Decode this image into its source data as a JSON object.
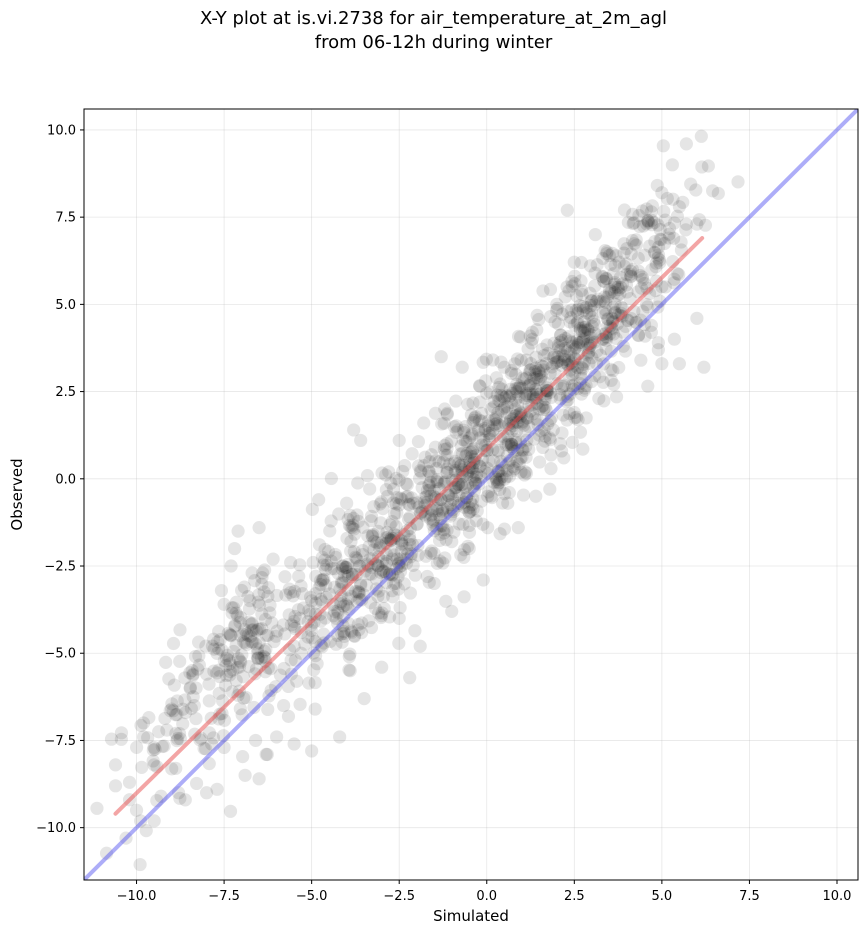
{
  "chart_data": {
    "type": "scatter",
    "title_line1": "X-Y plot at is.vi.2738 for air_temperature_at_2m_agl",
    "title_line2": "from 06-12h during winter",
    "xlabel": "Simulated",
    "ylabel": "Observed",
    "xlim": [
      -11.5,
      10.6
    ],
    "ylim": [
      -11.5,
      10.6
    ],
    "xticks": [
      -10.0,
      -7.5,
      -5.0,
      -2.5,
      0.0,
      2.5,
      5.0,
      7.5,
      10.0
    ],
    "xtick_labels": [
      "−10.0",
      "−7.5",
      "−5.0",
      "−2.5",
      "0.0",
      "2.5",
      "5.0",
      "7.5",
      "10.0"
    ],
    "yticks": [
      -10.0,
      -7.5,
      -5.0,
      -2.5,
      0.0,
      2.5,
      5.0,
      7.5,
      10.0
    ],
    "ytick_labels": [
      "−10.0",
      "−7.5",
      "−5.0",
      "−2.5",
      "0.0",
      "2.5",
      "5.0",
      "7.5",
      "10.0"
    ],
    "grid": true,
    "series": [
      {
        "name": "observations",
        "marker_color": "#000000",
        "marker_alpha": 0.1,
        "cloud_description": "dense cloud of roughly 1500 points scattered around the fit line",
        "points": [
          [
            -10.6,
            -8.2
          ],
          [
            -10.6,
            -8.8
          ],
          [
            -10.2,
            -8.7
          ],
          [
            -10.2,
            -9.2
          ],
          [
            -10.3,
            -10.3
          ],
          [
            -10.0,
            -9.5
          ],
          [
            -9.8,
            -7.0
          ],
          [
            -9.8,
            -7.4
          ],
          [
            -9.5,
            -8.2
          ],
          [
            -9.5,
            -7.7
          ],
          [
            -9.3,
            -9.1
          ],
          [
            -9.0,
            -6.6
          ],
          [
            -8.8,
            -9.0
          ],
          [
            -8.6,
            -6.7
          ],
          [
            -8.3,
            -6.0
          ],
          [
            -8.0,
            -9.0
          ],
          [
            -7.7,
            -8.9
          ],
          [
            -7.5,
            -7.7
          ],
          [
            -8.0,
            -5.6
          ],
          [
            -7.8,
            -4.6
          ],
          [
            -7.5,
            -3.6
          ],
          [
            -7.3,
            -2.5
          ],
          [
            -7.2,
            -2.0
          ],
          [
            -7.1,
            -1.5
          ],
          [
            -7.0,
            -3.2
          ],
          [
            -6.7,
            -2.7
          ],
          [
            -6.9,
            -8.5
          ],
          [
            -6.5,
            -8.6
          ],
          [
            -6.6,
            -7.5
          ],
          [
            -6.3,
            -7.9
          ],
          [
            -6.5,
            -4.7
          ],
          [
            -6.5,
            -1.4
          ],
          [
            -6.4,
            -2.7
          ],
          [
            -6.1,
            -2.3
          ],
          [
            -6.0,
            -7.4
          ],
          [
            -5.8,
            -6.5
          ],
          [
            -5.6,
            -2.4
          ],
          [
            -5.5,
            -4.8
          ],
          [
            -5.5,
            -7.6
          ],
          [
            -5.3,
            -5.0
          ],
          [
            -5.0,
            -3.5
          ],
          [
            -4.9,
            -6.6
          ],
          [
            -5.0,
            -7.8
          ],
          [
            -4.8,
            -0.6
          ],
          [
            -4.6,
            -2.6
          ],
          [
            -4.3,
            -4.0
          ],
          [
            -4.2,
            -7.4
          ],
          [
            -4.1,
            -2.5
          ],
          [
            -4.0,
            -0.7
          ],
          [
            -3.9,
            -5.5
          ],
          [
            -3.8,
            1.4
          ],
          [
            -3.6,
            1.1
          ],
          [
            -3.6,
            -3.0
          ],
          [
            -3.5,
            -6.3
          ],
          [
            -3.3,
            -1.2
          ],
          [
            -3.1,
            -2.5
          ],
          [
            -3.0,
            -5.4
          ],
          [
            -2.8,
            0.2
          ],
          [
            -2.6,
            -3.0
          ],
          [
            -2.5,
            1.1
          ],
          [
            -2.5,
            -4.0
          ],
          [
            -2.3,
            -2.3
          ],
          [
            -2.2,
            -5.7
          ],
          [
            -2.1,
            -0.7
          ],
          [
            -2.0,
            -1.3
          ],
          [
            -1.9,
            -4.8
          ],
          [
            -1.8,
            1.6
          ],
          [
            -1.7,
            -2.8
          ],
          [
            -1.6,
            -0.1
          ],
          [
            -1.5,
            -3.0
          ],
          [
            -1.4,
            -0.6
          ],
          [
            -1.3,
            3.5
          ],
          [
            -1.2,
            2.0
          ],
          [
            -1.0,
            -1.8
          ],
          [
            -1.0,
            -3.8
          ],
          [
            -0.9,
            0.5
          ],
          [
            -0.8,
            -0.7
          ],
          [
            -0.7,
            3.2
          ],
          [
            -0.6,
            1.5
          ],
          [
            -0.5,
            -2.0
          ],
          [
            -0.4,
            0.2
          ],
          [
            -0.3,
            -1.2
          ],
          [
            -0.2,
            2.2
          ],
          [
            -0.1,
            -2.9
          ],
          [
            0.0,
            0.8
          ],
          [
            0.1,
            1.3
          ],
          [
            0.2,
            -0.1
          ],
          [
            0.3,
            2.4
          ],
          [
            0.4,
            0.5
          ],
          [
            0.5,
            3.2
          ],
          [
            0.6,
            -0.7
          ],
          [
            0.7,
            1.0
          ],
          [
            0.8,
            1.8
          ],
          [
            0.9,
            -1.4
          ],
          [
            1.0,
            2.6
          ],
          [
            1.1,
            0.2
          ],
          [
            1.2,
            1.5
          ],
          [
            1.3,
            4.2
          ],
          [
            1.4,
            -0.5
          ],
          [
            1.5,
            2.0
          ],
          [
            1.6,
            0.9
          ],
          [
            1.7,
            3.3
          ],
          [
            1.8,
            -0.3
          ],
          [
            1.9,
            1.4
          ],
          [
            2.0,
            5.0
          ],
          [
            2.1,
            2.3
          ],
          [
            2.2,
            0.6
          ],
          [
            2.3,
            7.7
          ],
          [
            2.4,
            3.3
          ],
          [
            2.5,
            1.9
          ],
          [
            2.6,
            4.5
          ],
          [
            2.7,
            6.2
          ],
          [
            2.8,
            2.6
          ],
          [
            2.9,
            3.6
          ],
          [
            3.0,
            5.1
          ],
          [
            3.1,
            7.0
          ],
          [
            3.2,
            2.3
          ],
          [
            3.3,
            4.0
          ],
          [
            3.5,
            6.4
          ],
          [
            3.6,
            3.1
          ],
          [
            3.8,
            5.3
          ],
          [
            3.9,
            3.8
          ],
          [
            4.0,
            6.6
          ],
          [
            4.2,
            4.8
          ],
          [
            4.4,
            3.4
          ],
          [
            4.5,
            5.6
          ],
          [
            4.6,
            7.4
          ],
          [
            4.7,
            4.2
          ],
          [
            4.8,
            6.8
          ],
          [
            4.9,
            3.9
          ],
          [
            5.0,
            8.2
          ],
          [
            5.1,
            5.5
          ],
          [
            5.2,
            6.9
          ],
          [
            5.3,
            9.0
          ],
          [
            5.5,
            7.8
          ],
          [
            5.5,
            3.3
          ],
          [
            5.7,
            9.6
          ],
          [
            5.7,
            7.3
          ],
          [
            6.0,
            7.3
          ],
          [
            6.0,
            4.6
          ],
          [
            6.2,
            3.2
          ],
          [
            5.0,
            3.3
          ],
          [
            4.7,
            4.4
          ],
          [
            4.9,
            3.7
          ]
        ]
      },
      {
        "name": "regression-fit",
        "line_color": "#e74c4c",
        "x": [
          -10.6,
          6.15
        ],
        "y": [
          -9.6,
          6.9
        ]
      },
      {
        "name": "one-to-one",
        "line_color": "#4a4af0",
        "x": [
          -11.5,
          10.6
        ],
        "y": [
          -11.5,
          10.6
        ]
      }
    ]
  }
}
